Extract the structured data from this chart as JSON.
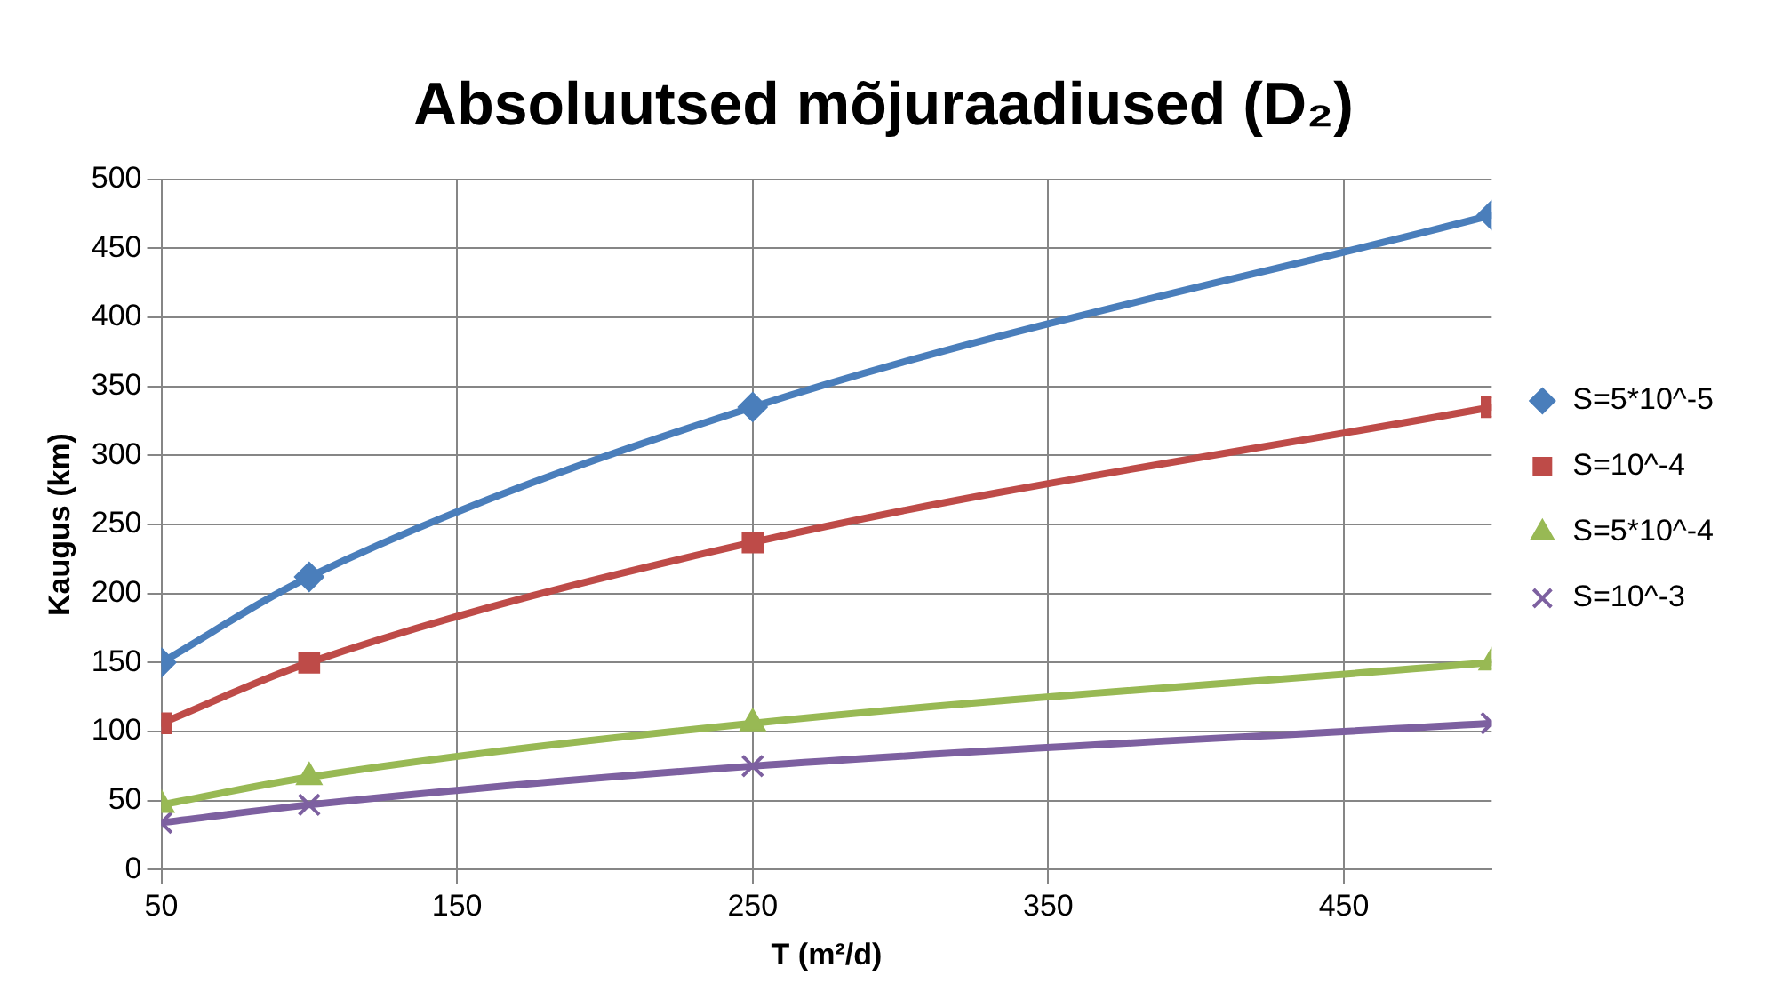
{
  "chart_data": {
    "type": "line",
    "title": "Absoluutsed mõjuraadiused (D₂)",
    "xlabel": "T (m²/d)",
    "ylabel": "Kaugus (km)",
    "x": [
      50,
      100,
      250,
      500
    ],
    "series": [
      {
        "name": "S=5*10^-5",
        "color": "#4a7ebb",
        "marker": "diamond",
        "values": [
          150,
          212,
          335,
          474
        ]
      },
      {
        "name": "S=10^-4",
        "color": "#be4b48",
        "marker": "square",
        "values": [
          106,
          150,
          237,
          335
        ]
      },
      {
        "name": "S=5*10^-4",
        "color": "#98b954",
        "marker": "triangle",
        "values": [
          47,
          67,
          106,
          150
        ]
      },
      {
        "name": "S=10^-3",
        "color": "#7d60a0",
        "marker": "cross",
        "values": [
          34,
          47,
          75,
          106
        ]
      }
    ],
    "xlim": [
      50,
      500
    ],
    "xticks": [
      50,
      150,
      250,
      350,
      450
    ],
    "ylim": [
      0,
      500
    ],
    "yticks": [
      0,
      50,
      100,
      150,
      200,
      250,
      300,
      350,
      400,
      450,
      500
    ],
    "grid": true,
    "legend": "right",
    "line_style": "solid"
  }
}
